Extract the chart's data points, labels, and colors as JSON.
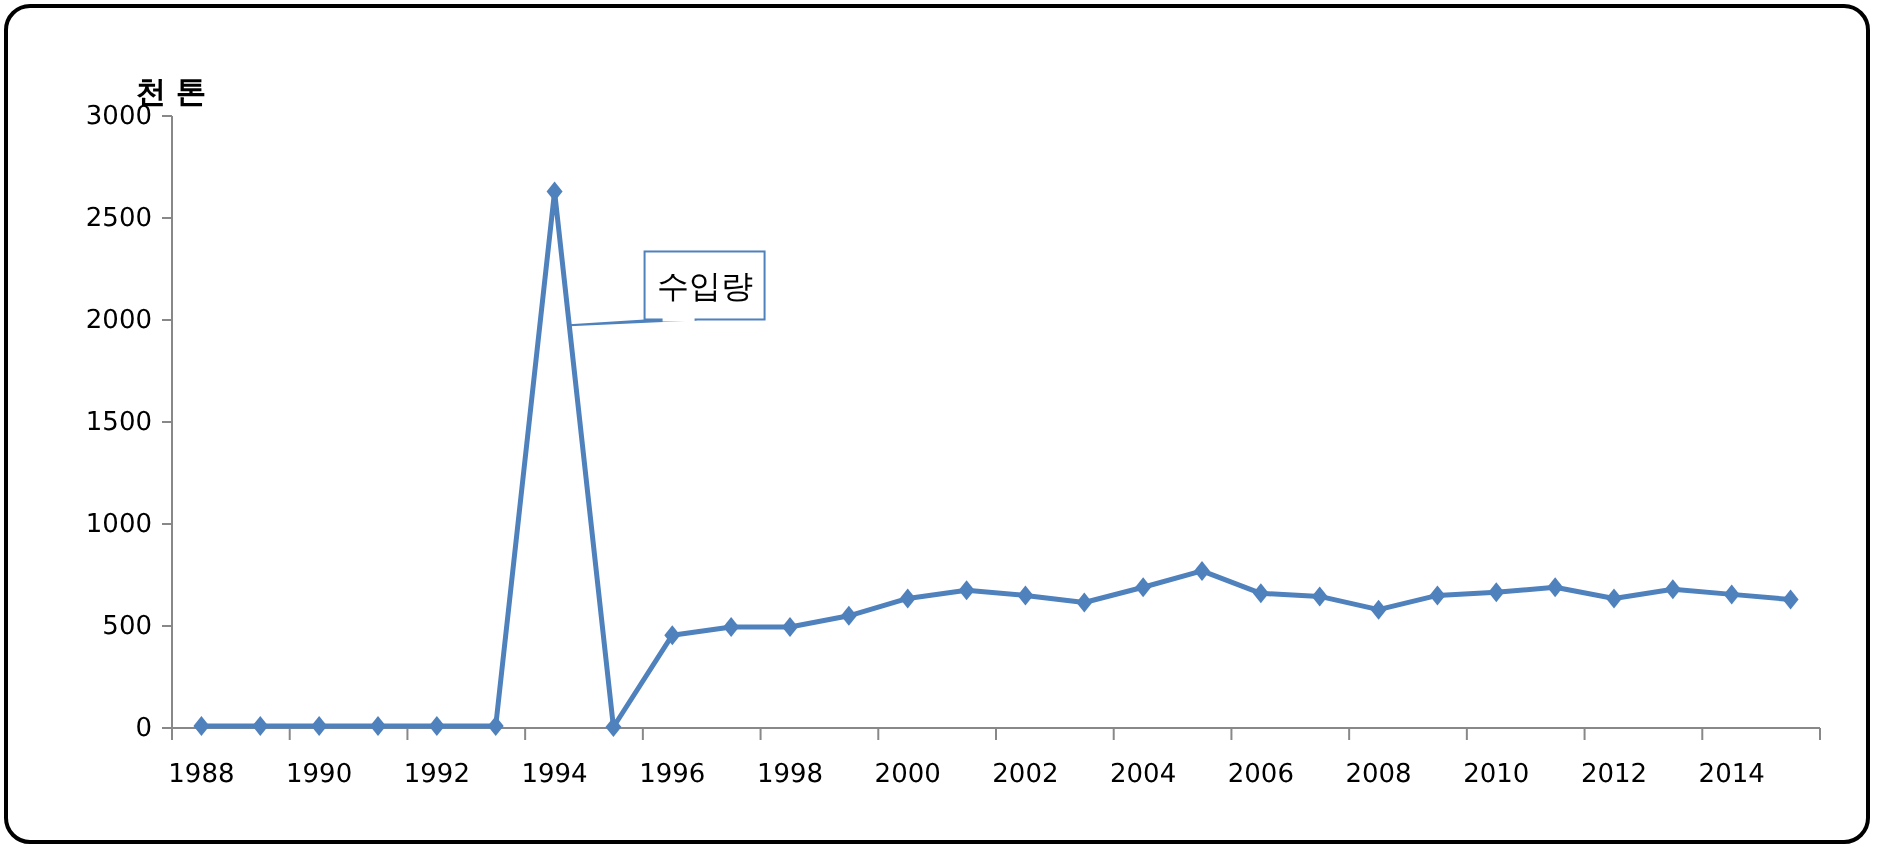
{
  "chart_data": {
    "type": "line",
    "ylabel": "천 톤",
    "categories": [
      "1988",
      null,
      "1990",
      null,
      "1992",
      null,
      "1994",
      null,
      "1996",
      null,
      "1998",
      null,
      "2000",
      null,
      "2002",
      null,
      "2004",
      null,
      "2006",
      null,
      "2008",
      null,
      "2010",
      null,
      "2012",
      null,
      "2014",
      null
    ],
    "series": [
      {
        "name": "수입량",
        "color": "#4f81bd",
        "values": [
          10,
          10,
          10,
          10,
          10,
          10,
          2630,
          5,
          455,
          495,
          495,
          550,
          635,
          675,
          650,
          615,
          690,
          770,
          660,
          645,
          580,
          650,
          665,
          690,
          635,
          680,
          655,
          630
        ]
      }
    ],
    "ylim": [
      0,
      3000
    ],
    "yticks": [
      0,
      500,
      1000,
      1500,
      2000,
      2500,
      3000
    ],
    "marker": "diamond",
    "line_style": "solid"
  }
}
